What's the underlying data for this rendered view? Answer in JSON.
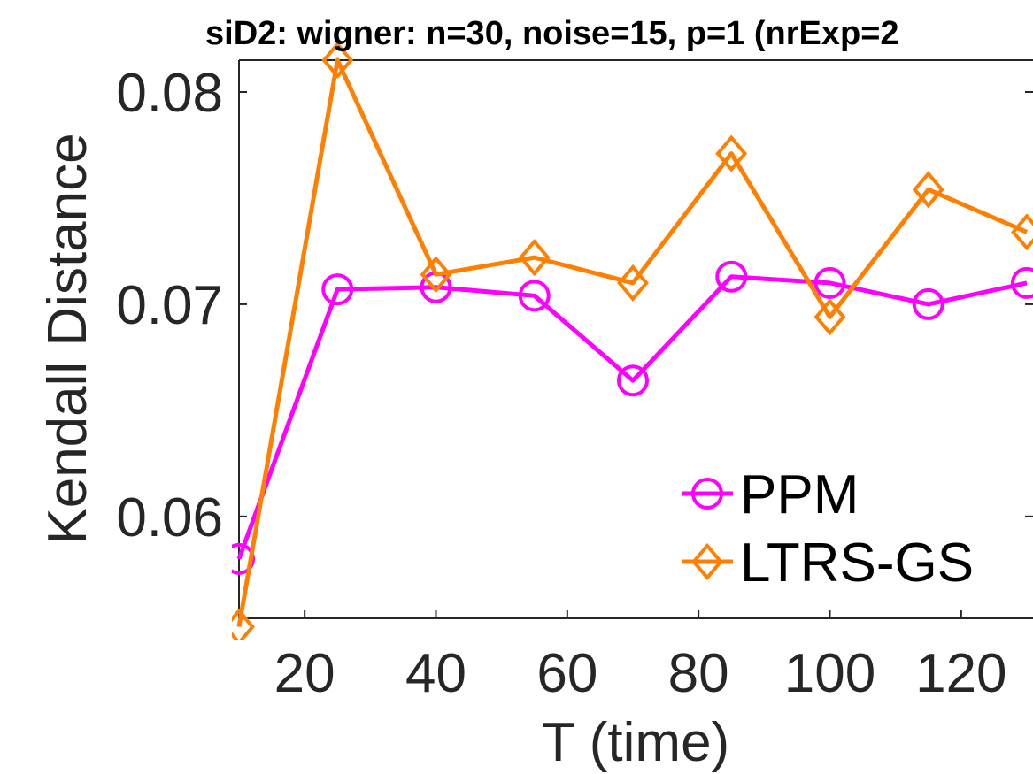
{
  "chart_data": {
    "type": "line",
    "title": "siD2: wigner: n=30, noise=15, p=1 (nrExp=2",
    "xlabel": "T (time)",
    "ylabel": "Kendall Distance",
    "x": [
      10,
      25,
      40,
      55,
      70,
      85,
      100,
      115,
      130
    ],
    "xlim": [
      10,
      130
    ],
    "ylim": [
      0.0552,
      0.0815
    ],
    "xticks": [
      20,
      40,
      60,
      80,
      100,
      120
    ],
    "yticks": [
      0.06,
      0.07,
      0.08
    ],
    "xtick_labels": [
      "20",
      "40",
      "60",
      "80",
      "100",
      "120"
    ],
    "ytick_labels": [
      "0.06",
      "0.07",
      "0.08"
    ],
    "grid": false,
    "legend_position": "bottom-right",
    "series": [
      {
        "name": "PPM",
        "color": "#ff00ff",
        "marker": "circle",
        "values": [
          0.058,
          0.0707,
          0.0708,
          0.0704,
          0.0664,
          0.0713,
          0.071,
          0.07,
          0.071
        ]
      },
      {
        "name": "LTRS-GS",
        "color": "#ff8000",
        "marker": "diamond",
        "values": [
          0.0548,
          0.0815,
          0.0714,
          0.0722,
          0.071,
          0.0771,
          0.0694,
          0.0754,
          0.0734
        ]
      }
    ]
  }
}
